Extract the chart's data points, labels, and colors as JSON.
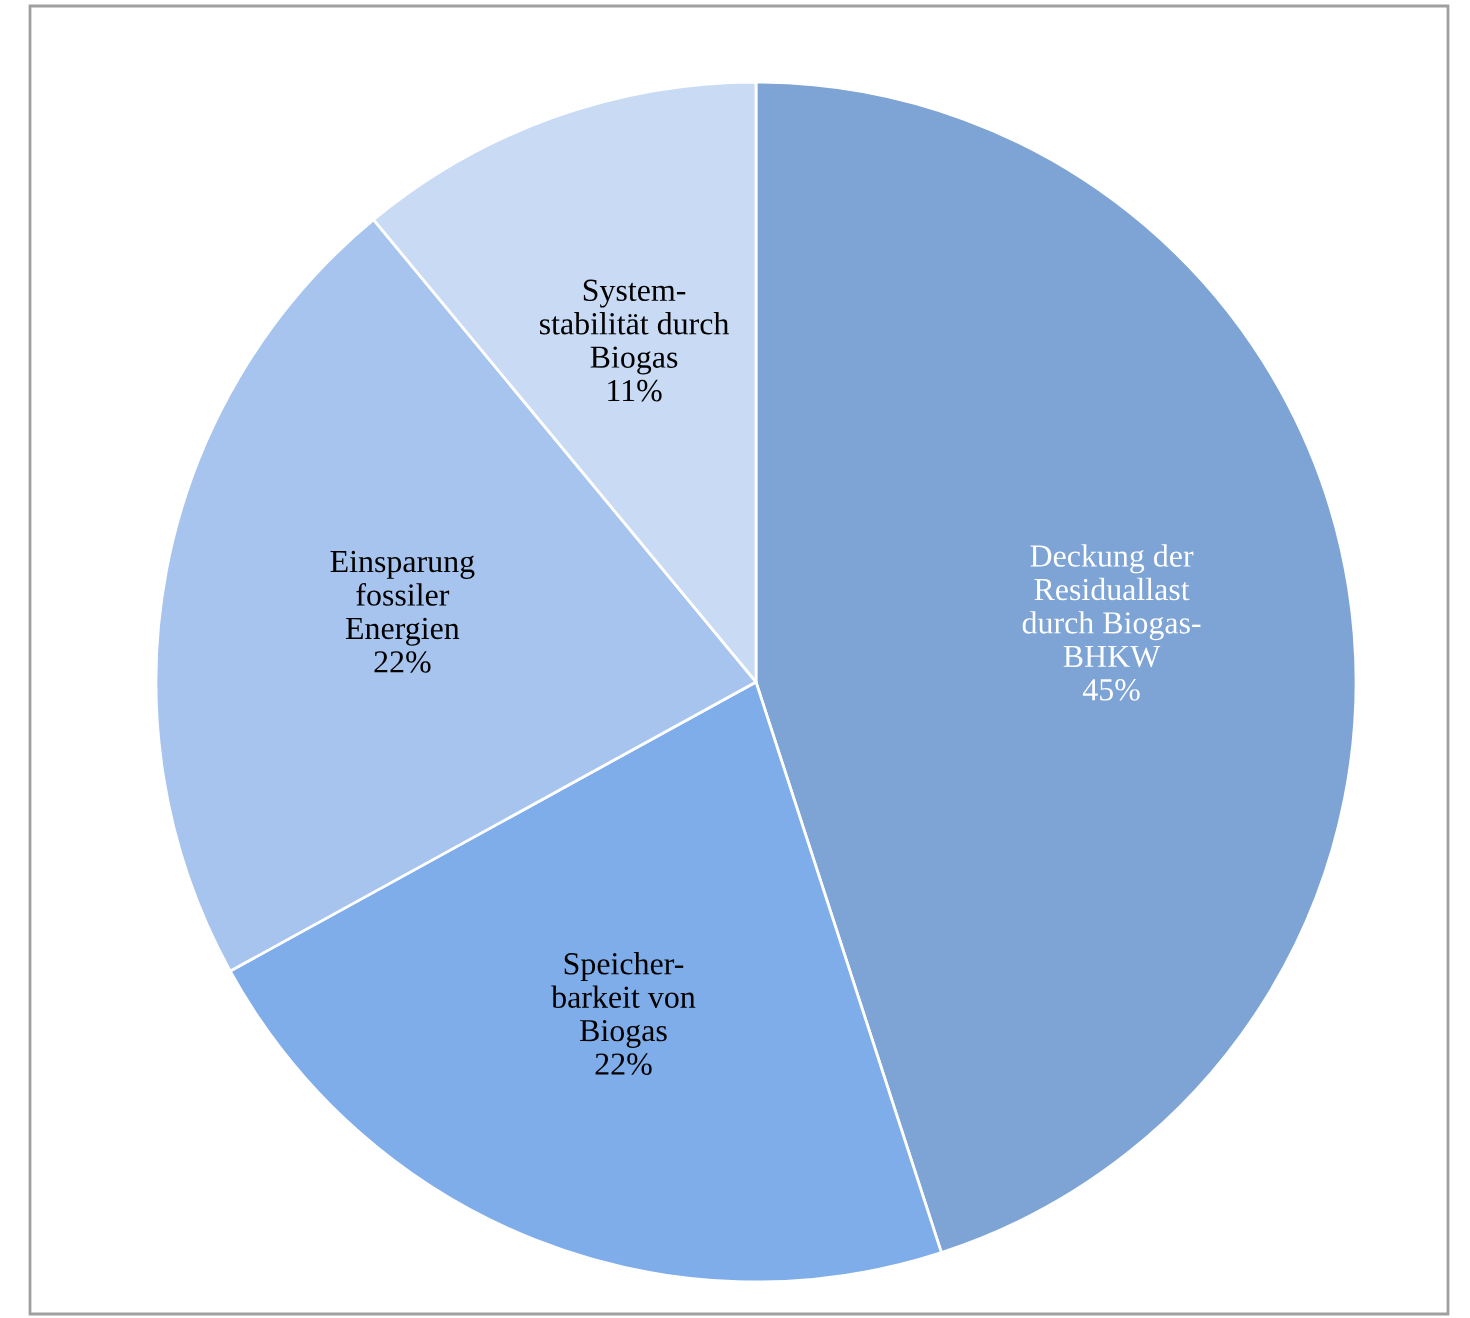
{
  "chart_data": {
    "type": "pie",
    "categories": [
      "Deckung der\nResiduallast\ndurch Biogas-\nBHKW",
      "Speicher-\nbarkeit von\nBiogas",
      "Einsparung\nfossiler\nEnergien",
      "System-\nstabilität durch\nBiogas"
    ],
    "values": [
      45,
      22,
      22,
      11
    ],
    "value_labels": [
      "45%",
      "22%",
      "22%",
      "11%"
    ],
    "colors": [
      "#7ea4d6",
      "#7fade9",
      "#a6c4ee",
      "#c8daf4"
    ],
    "legend": false
  }
}
